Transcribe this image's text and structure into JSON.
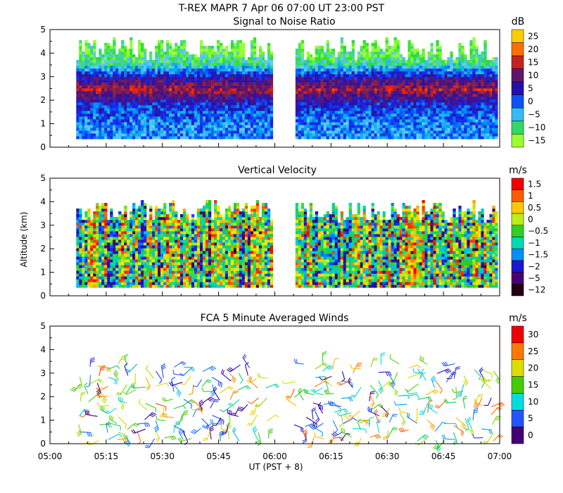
{
  "header": {
    "title": "T-REX   MAPR   7 Apr 06   07:00 UT   23:00   PST"
  },
  "axes": {
    "x_ticks": [
      "05:00",
      "05:15",
      "05:30",
      "05:45",
      "06:00",
      "06:15",
      "06:30",
      "06:45",
      "07:00"
    ],
    "x_label": "UT  (PST + 8)",
    "y_label": "Altitude (km)",
    "y_ticks": [
      "0",
      "1",
      "2",
      "3",
      "4",
      "5"
    ]
  },
  "colors": {
    "snr_scale": [
      "#99ff33",
      "#22dd33",
      "#66ccff",
      "#00aaee",
      "#1133ff",
      "#2211aa",
      "#551177",
      "#882244",
      "#ff2200",
      "#ff8800",
      "#ffcc00"
    ],
    "vel_scale": [
      "#220011",
      "#550066",
      "#2200aa",
      "#1133ff",
      "#00bbff",
      "#00ddaa",
      "#22cc22",
      "#99ee22",
      "#ffee00",
      "#ffaa00",
      "#ff4400",
      "#ee0000"
    ],
    "wind_scale": [
      "#440077",
      "#2200cc",
      "#2255ff",
      "#00aaff",
      "#00dddd",
      "#11cc66",
      "#44cc00",
      "#99dd00",
      "#dddd00",
      "#ffbb00",
      "#ff7700",
      "#ff3300",
      "#ee0000"
    ],
    "gap_color": "#ffffff"
  },
  "chart_data": [
    {
      "type": "heatmap",
      "title": "Signal to Noise Ratio",
      "units": "dB",
      "xlim": [
        "05:00",
        "07:00"
      ],
      "ylim": [
        0,
        5
      ],
      "ylabel": "",
      "data_gap": [
        "05:59",
        "06:05"
      ],
      "colorbar_ticks": [
        "25",
        "20",
        "15",
        "10",
        "5",
        "0",
        "−5",
        "−10",
        "−15"
      ],
      "bands_km": [
        {
          "alt": 0.4,
          "value": -3
        },
        {
          "alt": 1.0,
          "value": -2
        },
        {
          "alt": 1.8,
          "value": 4
        },
        {
          "alt": 2.4,
          "value": 16
        },
        {
          "alt": 2.9,
          "value": 6
        },
        {
          "alt": 3.5,
          "value": -10
        },
        {
          "alt": 4.1,
          "value": -15
        }
      ]
    },
    {
      "type": "heatmap",
      "title": "Vertical Velocity",
      "units": "m/s",
      "xlim": [
        "05:00",
        "07:00"
      ],
      "ylim": [
        0,
        5
      ],
      "ylabel": "Altitude (km)",
      "data_gap": [
        "05:59",
        "06:05"
      ],
      "colorbar_ticks": [
        "1.5",
        "1",
        "0.5",
        "0",
        "−0.5",
        "−1",
        "−1.5",
        "−2",
        "−5",
        "−12"
      ],
      "top_of_data_km": 3.5
    },
    {
      "type": "scatter",
      "title": "FCA 5 Minute Averaged Winds",
      "units": "m/s",
      "xlim": [
        "05:00",
        "07:00"
      ],
      "ylim": [
        0,
        5
      ],
      "ylabel": "",
      "symbol": "wind barbs",
      "altitude_range_km": [
        0.1,
        3.4
      ],
      "colorbar_ticks": [
        "30",
        "25",
        "20",
        "15",
        "10",
        "5",
        "0"
      ]
    }
  ]
}
